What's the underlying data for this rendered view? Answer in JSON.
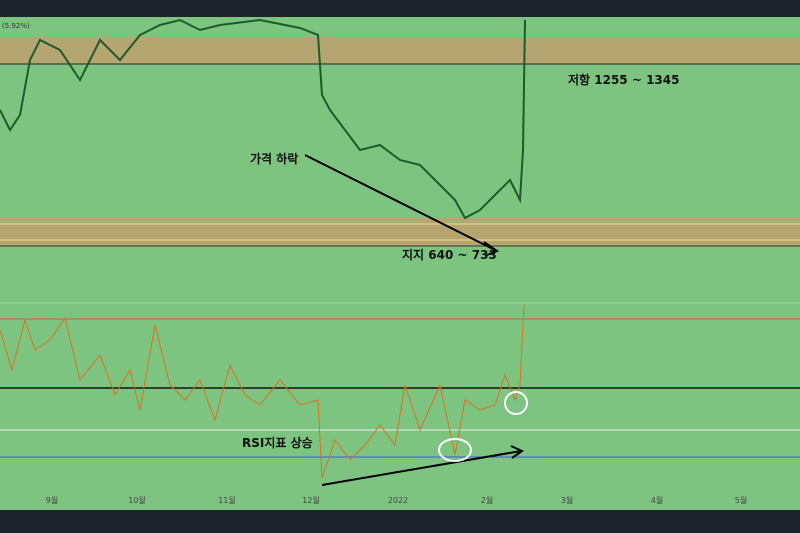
{
  "header": {
    "change_label": "(5.92%)"
  },
  "annotations": {
    "resistance": "저항 1255 ~ 1345",
    "price_drop": "가격 하락",
    "support": "지지 640 ~ 733",
    "rsi_rise": "RSI지표 상승"
  },
  "x_axis_labels": [
    "9월",
    "10월",
    "11월",
    "12월",
    "2022",
    "2월",
    "3월",
    "4월",
    "5월"
  ]
}
